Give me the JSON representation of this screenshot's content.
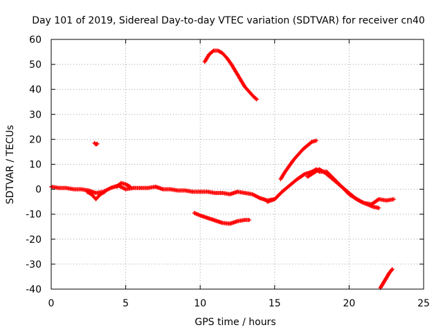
{
  "chart_data": {
    "type": "scatter",
    "title": "Day 101 of 2019, Sidereal Day-to-day VTEC variation (SDTVAR) for receiver cn40",
    "xlabel": "GPS time / hours",
    "ylabel": "SDTVAR / TECUs",
    "xlim": [
      0,
      25
    ],
    "ylim": [
      -40,
      60
    ],
    "xticks": [
      0,
      5,
      10,
      15,
      20,
      25
    ],
    "yticks": [
      -40,
      -30,
      -20,
      -10,
      0,
      10,
      20,
      30,
      40,
      50,
      60
    ],
    "grid": true,
    "marker": "plus",
    "color": "#ff0000",
    "series": [
      {
        "name": "arc-main-day",
        "x": [
          0.0,
          0.5,
          1.0,
          1.5,
          2.0,
          2.5,
          3.0,
          3.5,
          4.0,
          4.5,
          5.0,
          5.5,
          6.0,
          6.5,
          7.0,
          7.5,
          8.0,
          8.5,
          9.0,
          9.5,
          10.0,
          10.5,
          11.0,
          11.5,
          12.0,
          12.5,
          13.0,
          13.5,
          14.0,
          14.5,
          15.0
        ],
        "y": [
          1.0,
          0.5,
          0.5,
          0.0,
          0.0,
          -0.5,
          -1.5,
          -1.0,
          0.5,
          1.5,
          0.0,
          0.5,
          0.5,
          0.5,
          1.0,
          0.0,
          0.0,
          -0.5,
          -0.5,
          -1.0,
          -1.0,
          -1.0,
          -1.5,
          -1.5,
          -2.0,
          -1.0,
          -1.5,
          -2.0,
          -3.5,
          -4.5,
          -4.0
        ]
      },
      {
        "name": "arc-dip-3h",
        "x": [
          2.4,
          2.7,
          3.0,
          3.3,
          3.6
        ],
        "y": [
          -1.0,
          -2.0,
          -4.0,
          -2.0,
          -1.0
        ]
      },
      {
        "name": "arc-bump-5h",
        "x": [
          4.4,
          4.7,
          5.0,
          5.3
        ],
        "y": [
          1.0,
          2.5,
          2.0,
          1.0
        ]
      },
      {
        "name": "arc-point-3h",
        "x": [
          2.9,
          3.0,
          3.1
        ],
        "y": [
          18.5,
          18.0,
          18.2
        ]
      },
      {
        "name": "arc-peak-11h",
        "x": [
          10.3,
          10.6,
          10.9,
          11.2,
          11.5,
          11.8,
          12.1,
          12.4,
          12.7,
          13.0,
          13.3,
          13.6,
          13.8
        ],
        "y": [
          51.0,
          54.0,
          55.5,
          55.5,
          54.5,
          52.5,
          50.0,
          47.0,
          44.0,
          41.0,
          39.0,
          37.0,
          36.0
        ]
      },
      {
        "name": "arc-neg-12h",
        "x": [
          9.6,
          10.0,
          10.5,
          11.0,
          11.5,
          12.0,
          12.5,
          13.0,
          13.3
        ],
        "y": [
          -9.5,
          -10.5,
          -11.5,
          -12.5,
          -13.5,
          -13.8,
          -12.8,
          -12.3,
          -12.3
        ]
      },
      {
        "name": "arc-rise-16h",
        "x": [
          15.4,
          15.7,
          16.0,
          16.3,
          16.6,
          16.9,
          17.2,
          17.5,
          17.8
        ],
        "y": [
          4.0,
          7.0,
          9.5,
          12.0,
          14.0,
          16.0,
          17.5,
          19.0,
          19.5
        ]
      },
      {
        "name": "arc-hump-18h",
        "x": [
          14.5,
          15.0,
          15.5,
          16.0,
          16.5,
          17.0,
          17.5,
          17.8,
          18.0,
          18.5,
          19.0,
          19.5,
          20.0,
          20.5,
          21.0,
          21.5,
          22.0,
          22.5,
          23.0
        ],
        "y": [
          -5.0,
          -4.0,
          -1.0,
          1.5,
          4.0,
          6.0,
          7.0,
          8.0,
          7.0,
          7.0,
          4.0,
          1.0,
          -2.0,
          -4.0,
          -5.5,
          -6.0,
          -4.0,
          -4.5,
          -4.0
        ]
      },
      {
        "name": "arc-hump-18h-b",
        "x": [
          17.2,
          17.6,
          18.0,
          18.4,
          18.8,
          19.2,
          19.6,
          20.0,
          20.4,
          20.8,
          21.2,
          21.6,
          22.0
        ],
        "y": [
          5.0,
          6.5,
          8.0,
          6.5,
          4.5,
          2.5,
          0.5,
          -1.5,
          -3.5,
          -5.0,
          -6.0,
          -7.0,
          -7.5
        ]
      },
      {
        "name": "arc-end-22h",
        "x": [
          22.1,
          22.3,
          22.5,
          22.7,
          22.9
        ],
        "y": [
          -39.5,
          -37.5,
          -35.5,
          -33.5,
          -32.0
        ]
      }
    ]
  }
}
